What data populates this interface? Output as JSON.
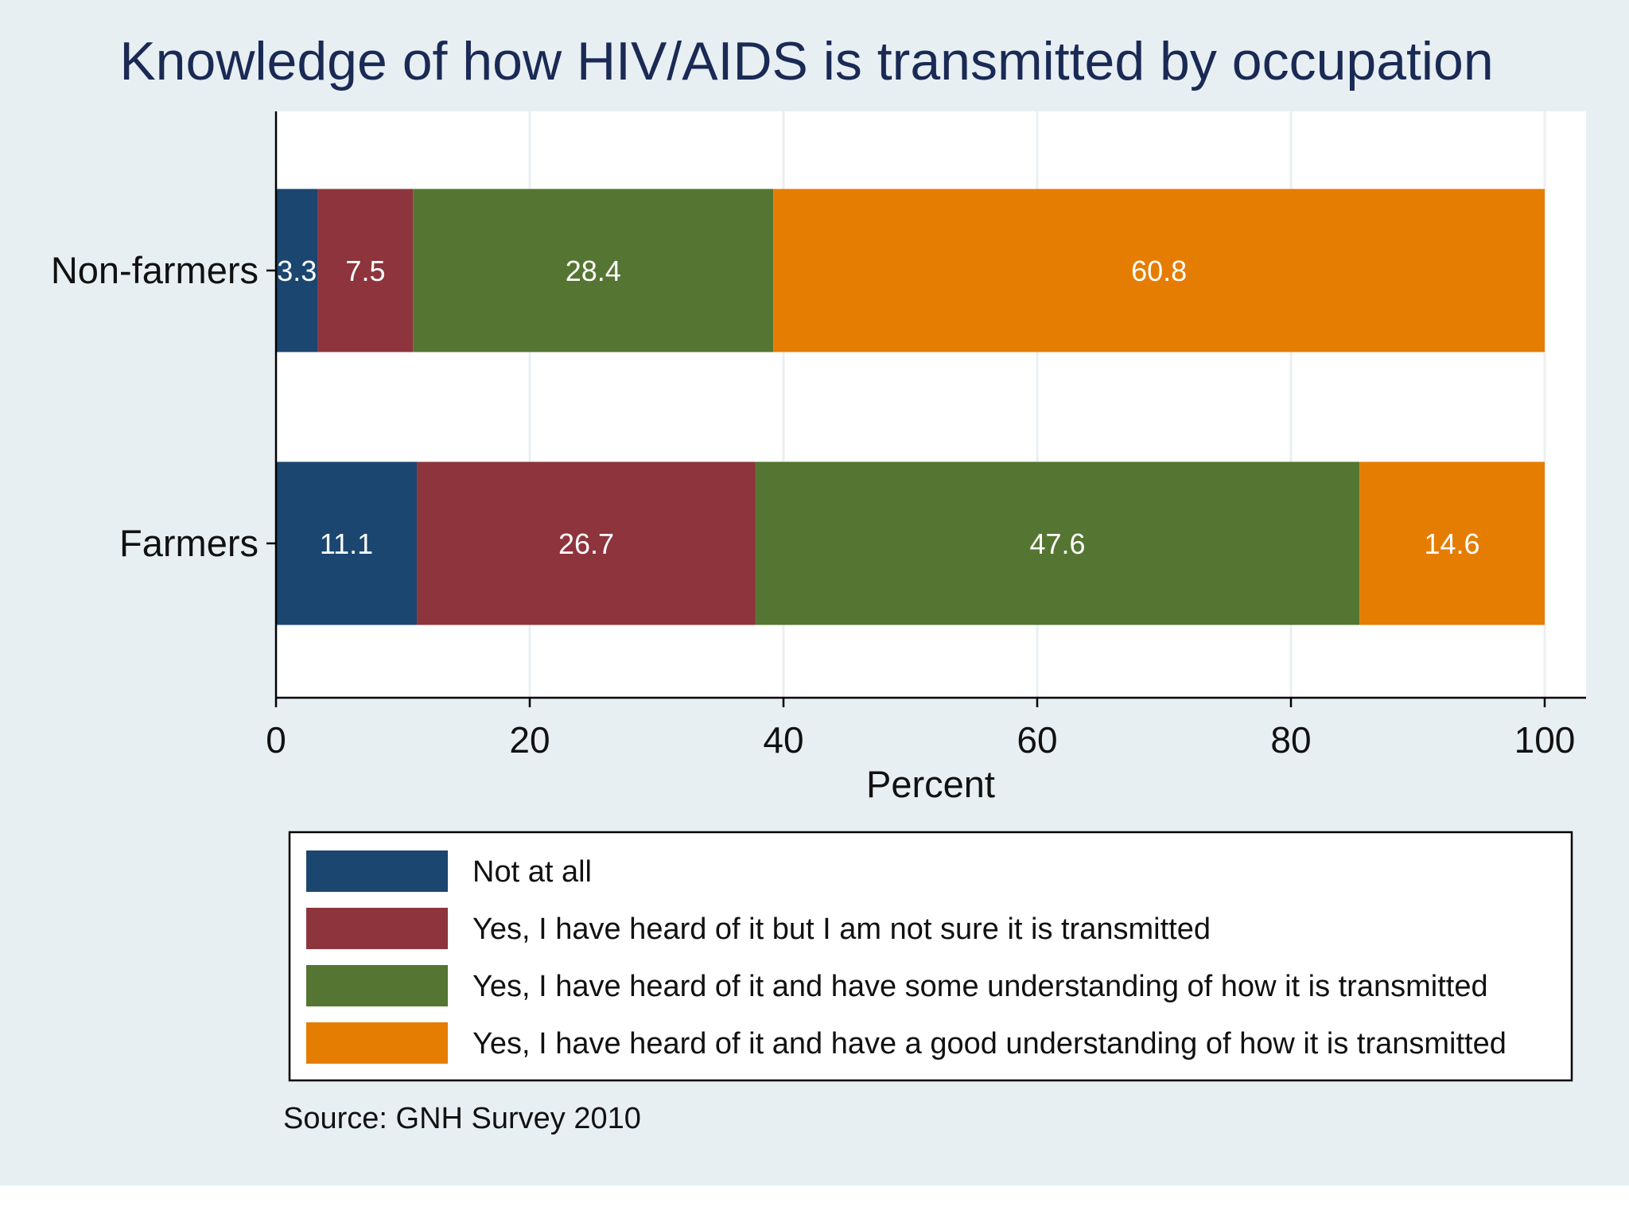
{
  "colors": {
    "background": "#e8eff3",
    "plot_background": "#ffffff",
    "gridline": "#eaeff2",
    "title": "#1a2a55",
    "axis_text": "#111111",
    "value_label": "#ffffff"
  },
  "chart_data": {
    "type": "bar",
    "orientation": "horizontal",
    "stacked": true,
    "title": "Knowledge of how HIV/AIDS is transmitted by occupation",
    "xlabel": "Percent",
    "ylabel": "",
    "xlim": [
      0,
      100
    ],
    "xticks": [
      0,
      20,
      40,
      60,
      80,
      100
    ],
    "grid": true,
    "categories": [
      "Non-farmers",
      "Farmers"
    ],
    "series": [
      {
        "name": "Not at all",
        "color": "#1b4670",
        "values": [
          3.3,
          11.1
        ]
      },
      {
        "name": "Yes, I have heard of it but I am not sure it is transmitted",
        "color": "#8e343c",
        "values": [
          7.5,
          26.7
        ]
      },
      {
        "name": "Yes, I have heard of it and have some understanding of how it is transmitted",
        "color": "#557532",
        "values": [
          28.4,
          47.6
        ]
      },
      {
        "name": "Yes, I have heard of it and have a good understanding of how it is transmitted",
        "color": "#e57d02",
        "values": [
          60.8,
          14.6
        ]
      }
    ],
    "legend_position": "bottom",
    "note": "Source: GNH Survey 2010"
  }
}
